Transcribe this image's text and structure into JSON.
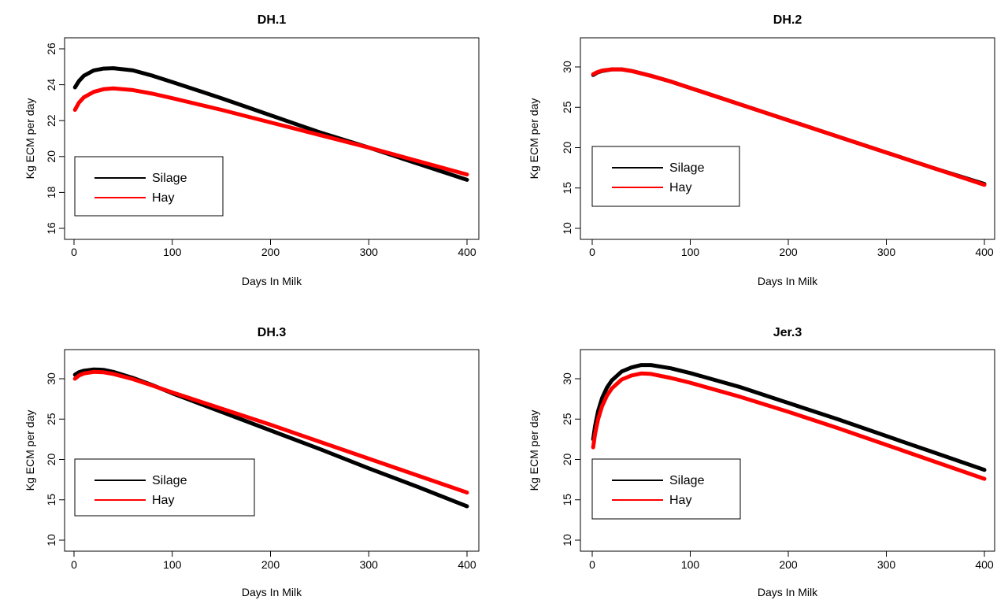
{
  "chart_data": [
    {
      "type": "line",
      "title": "DH.1",
      "xlabel": "Days In Milk",
      "ylabel": "Kg ECM per day",
      "xlim": [
        0,
        400
      ],
      "ylim": [
        16,
        26
      ],
      "xticks": [
        "0",
        "100",
        "200",
        "300",
        "400"
      ],
      "yticks": [
        "16",
        "18",
        "20",
        "22",
        "24",
        "26"
      ],
      "grid": false,
      "legend_position": "bottom-left",
      "series": [
        {
          "name": "Silage",
          "color": "#000000",
          "x": [
            1,
            5,
            10,
            20,
            30,
            40,
            60,
            80,
            100,
            150,
            200,
            250,
            300,
            350,
            400
          ],
          "y": [
            23.85,
            24.2,
            24.5,
            24.8,
            24.9,
            24.92,
            24.8,
            24.5,
            24.15,
            23.25,
            22.3,
            21.35,
            20.5,
            19.6,
            18.7
          ]
        },
        {
          "name": "Hay",
          "color": "#ff0000",
          "x": [
            1,
            5,
            10,
            20,
            30,
            40,
            60,
            80,
            100,
            150,
            200,
            250,
            300,
            350,
            400
          ],
          "y": [
            22.6,
            23.0,
            23.3,
            23.6,
            23.75,
            23.8,
            23.7,
            23.5,
            23.25,
            22.6,
            21.9,
            21.2,
            20.5,
            19.75,
            19.0
          ]
        }
      ]
    },
    {
      "type": "line",
      "title": "DH.2",
      "xlabel": "Days In Milk",
      "ylabel": "Kg ECM per day",
      "xlim": [
        0,
        400
      ],
      "ylim": [
        10,
        30
      ],
      "xticks": [
        "0",
        "100",
        "200",
        "300",
        "400"
      ],
      "yticks": [
        "10",
        "15",
        "20",
        "25",
        "30"
      ],
      "grid": false,
      "legend_position": "bottom-left",
      "series": [
        {
          "name": "Silage",
          "color": "#000000",
          "x": [
            1,
            5,
            10,
            20,
            30,
            40,
            60,
            80,
            100,
            150,
            200,
            250,
            300,
            350,
            400
          ],
          "y": [
            29.0,
            29.3,
            29.5,
            29.7,
            29.7,
            29.5,
            28.9,
            28.2,
            27.4,
            25.4,
            23.4,
            21.4,
            19.4,
            17.4,
            15.5
          ]
        },
        {
          "name": "Hay",
          "color": "#ff0000",
          "x": [
            1,
            5,
            10,
            20,
            30,
            40,
            60,
            80,
            100,
            150,
            200,
            250,
            300,
            350,
            400
          ],
          "y": [
            29.1,
            29.35,
            29.55,
            29.7,
            29.7,
            29.5,
            28.9,
            28.2,
            27.4,
            25.4,
            23.4,
            21.4,
            19.4,
            17.4,
            15.4
          ]
        }
      ]
    },
    {
      "type": "line",
      "title": "DH.3",
      "xlabel": "Days In Milk",
      "ylabel": "Kg ECM per day",
      "xlim": [
        0,
        400
      ],
      "ylim": [
        10,
        30
      ],
      "xticks": [
        "0",
        "100",
        "200",
        "300",
        "400"
      ],
      "yticks": [
        "10",
        "15",
        "20",
        "25",
        "30"
      ],
      "grid": false,
      "legend_position": "bottom-left",
      "series": [
        {
          "name": "Silage",
          "color": "#000000",
          "x": [
            1,
            5,
            10,
            20,
            30,
            40,
            60,
            80,
            100,
            150,
            200,
            250,
            300,
            350,
            400
          ],
          "y": [
            30.5,
            30.8,
            31.0,
            31.15,
            31.1,
            30.85,
            30.1,
            29.2,
            28.2,
            25.9,
            23.6,
            21.3,
            18.9,
            16.6,
            14.2
          ]
        },
        {
          "name": "Hay",
          "color": "#ff0000",
          "x": [
            1,
            5,
            10,
            20,
            30,
            40,
            60,
            80,
            100,
            150,
            200,
            250,
            300,
            350,
            400
          ],
          "y": [
            30.0,
            30.4,
            30.65,
            30.85,
            30.8,
            30.6,
            29.95,
            29.15,
            28.3,
            26.3,
            24.3,
            22.2,
            20.1,
            18.0,
            15.9
          ]
        }
      ]
    },
    {
      "type": "line",
      "title": "Jer.3",
      "xlabel": "Days In Milk",
      "ylabel": "Kg ECM per day",
      "xlim": [
        0,
        400
      ],
      "ylim": [
        10,
        30
      ],
      "xticks": [
        "0",
        "100",
        "200",
        "300",
        "400"
      ],
      "yticks": [
        "10",
        "15",
        "20",
        "25",
        "30"
      ],
      "grid": false,
      "legend_position": "bottom-left",
      "series": [
        {
          "name": "Silage",
          "color": "#000000",
          "x": [
            1,
            3,
            6,
            10,
            15,
            20,
            30,
            40,
            50,
            60,
            80,
            100,
            150,
            200,
            250,
            300,
            350,
            400
          ],
          "y": [
            22.5,
            24.2,
            26.0,
            27.6,
            28.9,
            29.8,
            30.9,
            31.4,
            31.7,
            31.7,
            31.3,
            30.7,
            29.0,
            27.0,
            25.0,
            22.9,
            20.8,
            18.7
          ]
        },
        {
          "name": "Hay",
          "color": "#ff0000",
          "x": [
            1,
            3,
            6,
            10,
            15,
            20,
            30,
            40,
            50,
            60,
            80,
            100,
            150,
            200,
            250,
            300,
            350,
            400
          ],
          "y": [
            21.5,
            23.2,
            25.0,
            26.6,
            27.9,
            28.8,
            29.9,
            30.4,
            30.65,
            30.6,
            30.1,
            29.5,
            27.8,
            25.9,
            23.9,
            21.8,
            19.7,
            17.6
          ]
        }
      ]
    }
  ]
}
